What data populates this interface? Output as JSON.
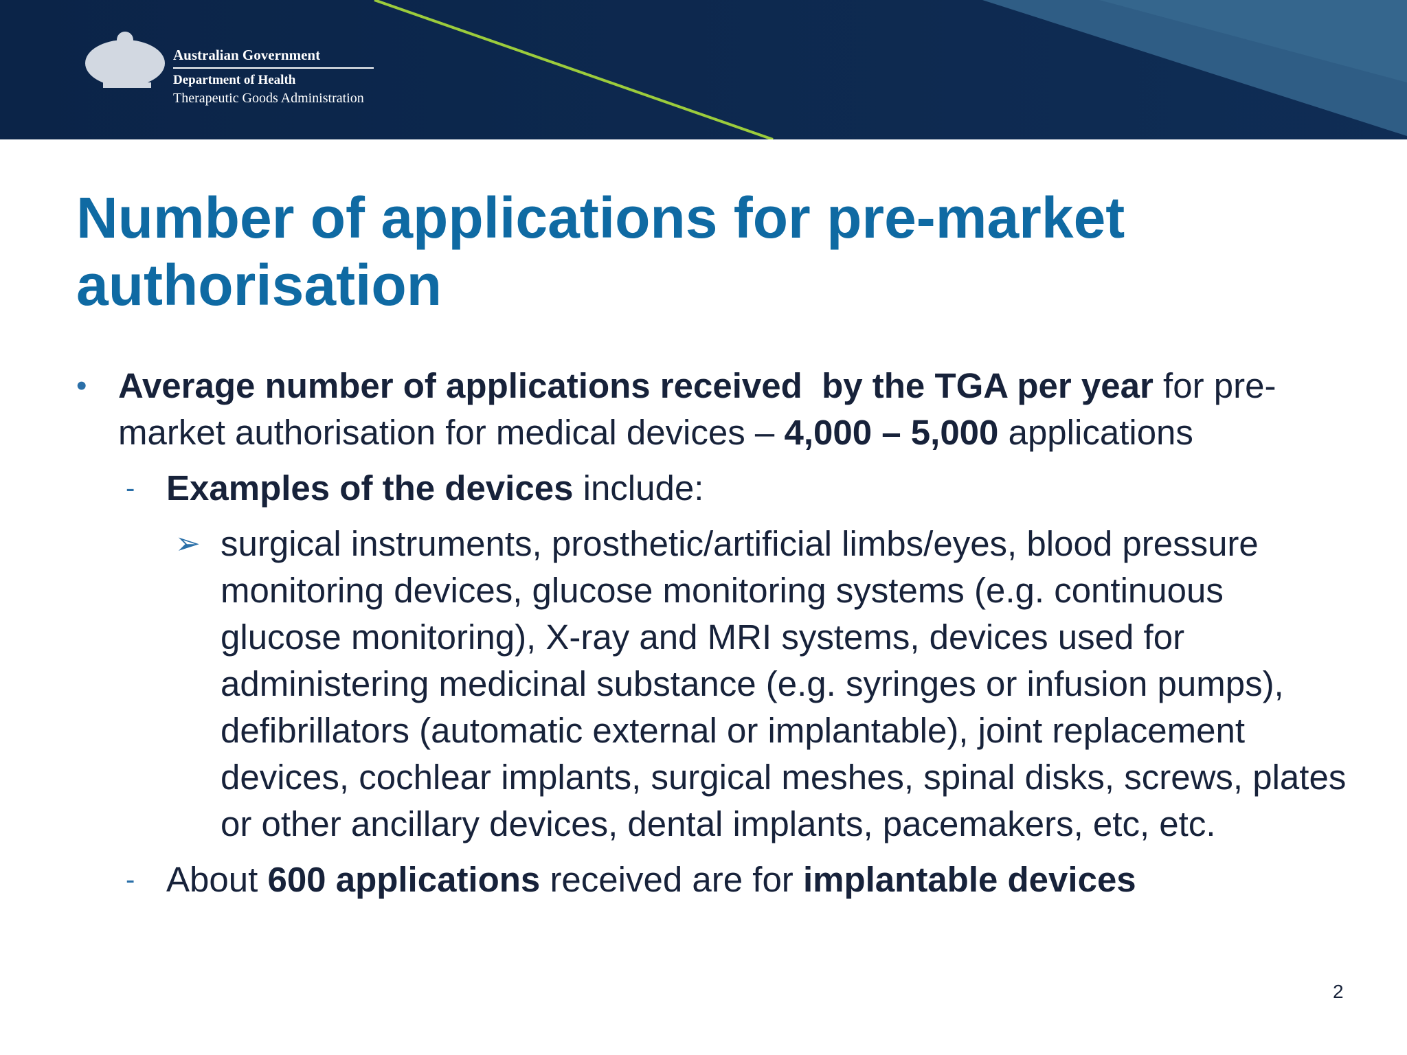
{
  "header": {
    "government": "Australian Government",
    "department": "Department of Health",
    "agency": "Therapeutic Goods Administration"
  },
  "title": "Number of applications for pre-market authorisation",
  "content": [
    {
      "level": 1,
      "marker": "•",
      "runs": [
        {
          "text": "Average number of applications received  by the TGA per year",
          "bold": true
        },
        {
          "text": " for pre-market authorisation for medical devices – ",
          "bold": false
        },
        {
          "text": "4,000 – 5,000",
          "bold": true
        },
        {
          "text": " applications",
          "bold": false
        }
      ]
    },
    {
      "level": 2,
      "marker": "-",
      "runs": [
        {
          "text": "Examples of the devices",
          "bold": true
        },
        {
          "text": " include:",
          "bold": false
        }
      ]
    },
    {
      "level": 3,
      "marker": "➢",
      "runs": [
        {
          "text": "surgical instruments, prosthetic/artificial limbs/eyes, blood pressure monitoring devices, glucose monitoring systems (e.g. continuous glucose monitoring), X-ray and MRI systems, devices used for administering medicinal substance (e.g. syringes or infusion pumps), defibrillators (automatic external or implantable), joint replacement devices, cochlear implants, surgical meshes, spinal disks, screws, plates or other ancillary devices, dental implants, pacemakers, etc, etc.",
          "bold": false
        }
      ]
    },
    {
      "level": 2,
      "marker": "-",
      "runs": [
        {
          "text": "About ",
          "bold": false
        },
        {
          "text": "600 applications",
          "bold": true
        },
        {
          "text": " received are for ",
          "bold": false
        },
        {
          "text": "implantable devices",
          "bold": true
        }
      ]
    }
  ],
  "page_number": "2"
}
